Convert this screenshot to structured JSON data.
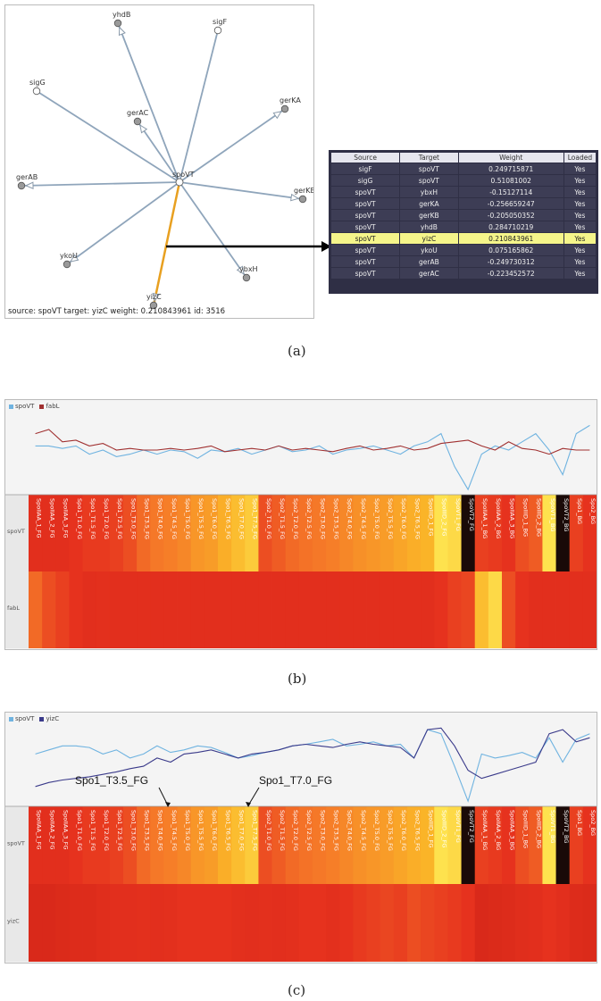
{
  "panel_a": {
    "caption": "(a)",
    "center_node": "spoVT",
    "nodes": [
      "yhdB",
      "sigF",
      "sigG",
      "gerKA",
      "gerAC",
      "gerAB",
      "gerKB",
      "ykoU",
      "ybxH",
      "yizC"
    ],
    "selected_edge_target": "yizC",
    "status_text": "source: spoVT target: yizC weight: 0.210843961 id: 3516",
    "edge_color": "#8fa5bb",
    "selected_edge_color": "#e8a020",
    "table": {
      "headers": [
        "Source",
        "Target",
        "Weight",
        "Loaded"
      ],
      "rows": [
        [
          "sigF",
          "spoVT",
          "0.249715871",
          "Yes"
        ],
        [
          "sigG",
          "spoVT",
          "0.51081002",
          "Yes"
        ],
        [
          "spoVT",
          "ybxH",
          "-0.15127114",
          "Yes"
        ],
        [
          "spoVT",
          "gerKA",
          "-0.256659247",
          "Yes"
        ],
        [
          "spoVT",
          "gerKB",
          "-0.205050352",
          "Yes"
        ],
        [
          "spoVT",
          "yhdB",
          "0.284710219",
          "Yes"
        ],
        [
          "spoVT",
          "yizC",
          "0.210843961",
          "Yes"
        ],
        [
          "spoVT",
          "ykoU",
          "0.075165862",
          "Yes"
        ],
        [
          "spoVT",
          "gerAB",
          "-0.249730312",
          "Yes"
        ],
        [
          "spoVT",
          "gerAC",
          "-0.223452572",
          "Yes"
        ]
      ],
      "selected_row": 6
    }
  },
  "panel_b": {
    "caption": "(b)",
    "legend": [
      {
        "name": "spoVT",
        "color": "#6fb3e0"
      },
      {
        "name": "fabL",
        "color": "#a03030"
      }
    ],
    "row_labels": [
      "spoVT",
      "fabL"
    ],
    "col_labels": [
      "SpoIIAA_1_FG",
      "SpoIIAA_2_FG",
      "SpoIIAA_3_FG",
      "Spo1_T1.0_FG",
      "Spo1_T1.5_FG",
      "Spo1_T2.0_FG",
      "Spo1_T2.5_FG",
      "Spo1_T3.0_FG",
      "Spo1_T3.5_FG",
      "Spo1_T4.0_FG",
      "Spo1_T4.5_FG",
      "Spo1_T5.0_FG",
      "Spo1_T5.5_FG",
      "Spo1_T6.0_FG",
      "Spo1_T6.5_FG",
      "Spo1_T7.0_FG",
      "Spo1_T7.5_FG",
      "Spo2_T1.0_FG",
      "Spo2_T1.5_FG",
      "Spo2_T2.0_FG",
      "Spo2_T2.5_FG",
      "Spo2_T3.0_FG",
      "Spo2_T3.5_FG",
      "Spo2_T4.0_FG",
      "Spo2_T4.5_FG",
      "Spo2_T5.0_FG",
      "Spo2_T5.5_FG",
      "Spo2_T6.0_FG",
      "Spo2_T6.5_FG",
      "SpoIIID_1_FG",
      "SpoIIID_2_FG",
      "SpoVT1_FG",
      "SpoVT2_FG",
      "SpoIIAA_1_BG",
      "SpoIIAA_2_BG",
      "SpoIIAA_3_BG",
      "SpoIIID_1_BG",
      "SpoIIID_2_BG",
      "SpoVT1_BG",
      "SpoVT2_BG",
      "Spo1_BG",
      "Spo2_BG"
    ]
  },
  "panel_c": {
    "caption": "(c)",
    "legend": [
      {
        "name": "spoVT",
        "color": "#6fb3e0"
      },
      {
        "name": "yizC",
        "color": "#3a3a8a"
      }
    ],
    "row_labels": [
      "spoVT",
      "yizC"
    ],
    "annotations": [
      "Spo1_T3.5_FG",
      "Spo1_T7.0_FG"
    ],
    "col_labels": [
      "SpoIIAA_1_FG",
      "SpoIIAA_2_FG",
      "SpoIIAA_3_FG",
      "Spo1_T1.0_FG",
      "Spo1_T1.5_FG",
      "Spo1_T2.0_FG",
      "Spo1_T2.5_FG",
      "Spo1_T3.0_FG",
      "Spo1_T3.5_FG",
      "Spo1_T4.0_FG",
      "Spo1_T4.5_FG",
      "Spo1_T5.0_FG",
      "Spo1_T5.5_FG",
      "Spo1_T6.0_FG",
      "Spo1_T6.5_FG",
      "Spo1_T7.0_FG",
      "Spo1_T7.5_FG",
      "Spo2_T1.0_FG",
      "Spo2_T1.5_FG",
      "Spo2_T2.0_FG",
      "Spo2_T2.5_FG",
      "Spo2_T3.0_FG",
      "Spo2_T3.5_FG",
      "Spo2_T4.0_FG",
      "Spo2_T4.5_FG",
      "Spo2_T5.0_FG",
      "Spo2_T5.5_FG",
      "Spo2_T6.0_FG",
      "Spo2_T6.5_FG",
      "SpoIIID_1_FG",
      "SpoIIID_2_FG",
      "SpoVT1_FG",
      "SpoVT2_FG",
      "SpoIIAA_1_BG",
      "SpoIIAA_2_BG",
      "SpoIIAA_3_BG",
      "SpoIIID_1_BG",
      "SpoIIID_2_BG",
      "SpoVT1_BG",
      "SpoVT2_BG",
      "Spo1_BG",
      "Spo2_BG"
    ]
  }
}
